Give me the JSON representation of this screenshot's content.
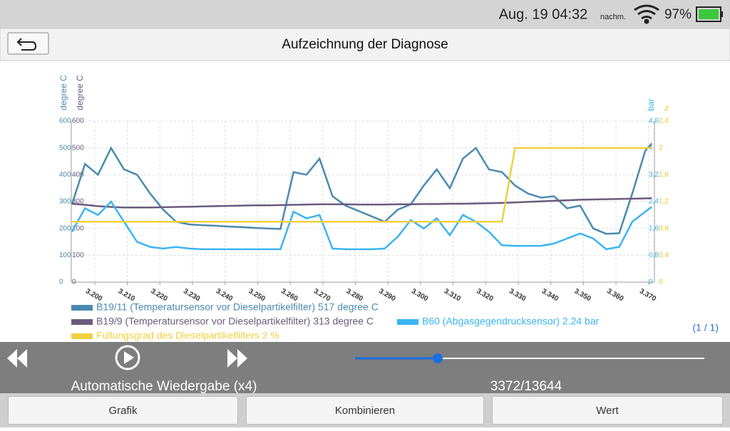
{
  "status": {
    "date_time": "Aug. 19 04:32",
    "period": "nachm.",
    "battery": "97%"
  },
  "header": {
    "title": "Aufzeichnung der Diagnose"
  },
  "chart_data": {
    "type": "line",
    "axes": [
      {
        "label": "degree C",
        "color": "#4a8ab0",
        "side": "left",
        "lim": [
          0,
          600
        ],
        "ticks": [
          0,
          100,
          200,
          300,
          400,
          500,
          600
        ]
      },
      {
        "label": "degree C",
        "color": "#6b5a7e",
        "side": "left",
        "lim": [
          0,
          600
        ],
        "ticks": [
          0,
          100,
          200,
          300,
          400,
          500,
          600
        ]
      },
      {
        "label": "bar",
        "color": "#3ab4f2",
        "side": "right",
        "lim": [
          0,
          4.8
        ],
        "ticks": [
          0,
          {
            "value": 0.8,
            "label": "0,8"
          },
          {
            "value": 1.6,
            "label": "1,6"
          },
          {
            "value": 2.4,
            "label": "2,4"
          },
          {
            "value": 3.2,
            "label": "3,2"
          },
          4,
          {
            "value": 4.8,
            "label": "4,8"
          }
        ]
      },
      {
        "label": "%",
        "color": "#e8c830",
        "side": "right",
        "lim": [
          0,
          2.4
        ],
        "ticks": [
          0,
          {
            "value": 0.4,
            "label": "0,4"
          },
          {
            "value": 0.8,
            "label": "0,8"
          },
          {
            "value": 1.2,
            "label": "1,2"
          },
          {
            "value": 1.6,
            "label": "1,6"
          },
          2,
          {
            "value": 2.4,
            "label": "2,4"
          }
        ]
      }
    ],
    "xlim": [
      3.1928,
      3.3718
    ],
    "xticks": [
      {
        "value": 3.2,
        "label": "3.200"
      },
      {
        "value": 3.21,
        "label": "3.210"
      },
      {
        "value": 3.22,
        "label": "3.220"
      },
      {
        "value": 3.23,
        "label": "3.230"
      },
      {
        "value": 3.24,
        "label": "3.240"
      },
      {
        "value": 3.25,
        "label": "3.250"
      },
      {
        "value": 3.26,
        "label": "3.260"
      },
      {
        "value": 3.27,
        "label": "3.270"
      },
      {
        "value": 3.28,
        "label": "3.280"
      },
      {
        "value": 3.29,
        "label": "3.290"
      },
      {
        "value": 3.3,
        "label": "3.300"
      },
      {
        "value": 3.31,
        "label": "3.310"
      },
      {
        "value": 3.32,
        "label": "3.320"
      },
      {
        "value": 3.33,
        "label": "3.330"
      },
      {
        "value": 3.34,
        "label": "3.340"
      },
      {
        "value": 3.35,
        "label": "3.350"
      },
      {
        "value": 3.36,
        "label": "3.360"
      },
      {
        "value": 3.37,
        "label": "3.370"
      }
    ],
    "grid": true,
    "x": [
      3.193,
      3.197,
      3.201,
      3.205,
      3.209,
      3.213,
      3.217,
      3.221,
      3.225,
      3.229,
      3.233,
      3.237,
      3.241,
      3.245,
      3.249,
      3.253,
      3.257,
      3.261,
      3.265,
      3.269,
      3.273,
      3.277,
      3.281,
      3.285,
      3.289,
      3.293,
      3.297,
      3.301,
      3.305,
      3.309,
      3.313,
      3.317,
      3.321,
      3.325,
      3.329,
      3.333,
      3.337,
      3.341,
      3.345,
      3.349,
      3.353,
      3.357,
      3.361,
      3.365,
      3.369,
      3.371
    ],
    "series": [
      {
        "name": "B19/11 (Temperatursensor vor Dieselpartikelfilter) 517 degree C",
        "color": "#4a8ab0",
        "axis": 0,
        "values": [
          290,
          440,
          400,
          500,
          420,
          400,
          330,
          270,
          225,
          215,
          212,
          210,
          207,
          205,
          202,
          200,
          198,
          410,
          400,
          460,
          320,
          285,
          265,
          245,
          225,
          270,
          290,
          360,
          420,
          350,
          460,
          500,
          420,
          410,
          360,
          330,
          315,
          320,
          275,
          285,
          200,
          180,
          182,
          330,
          490,
          517
        ]
      },
      {
        "name": "B19/9 (Temperatursensor vor Dieselpartikelfilter) 313 degree C",
        "color": "#6b5a7e",
        "axis": 1,
        "values": [
          292,
          288,
          283,
          280,
          278,
          278,
          278,
          279,
          280,
          281,
          282,
          283,
          284,
          285,
          286,
          286,
          287,
          288,
          289,
          290,
          290,
          290,
          289,
          289,
          289,
          290,
          290,
          291,
          291,
          292,
          292,
          293,
          294,
          295,
          297,
          299,
          301,
          303,
          305,
          307,
          308,
          309,
          310,
          311,
          312,
          313
        ]
      },
      {
        "name": "B60 (Abgasgegendrucksensor) 2.24 bar",
        "color": "#3ab4f2",
        "axis": 2,
        "values": [
          1.5,
          2.2,
          2.0,
          2.4,
          1.8,
          1.2,
          1.05,
          1.0,
          1.05,
          1.0,
          0.98,
          0.98,
          0.98,
          0.98,
          0.98,
          0.98,
          0.98,
          2.1,
          1.9,
          2.0,
          1.0,
          0.98,
          0.98,
          0.98,
          1.0,
          1.35,
          1.85,
          1.6,
          1.9,
          1.4,
          2.0,
          1.8,
          1.5,
          1.1,
          1.08,
          1.08,
          1.08,
          1.15,
          1.3,
          1.45,
          1.3,
          0.98,
          1.05,
          1.8,
          2.1,
          2.24
        ]
      },
      {
        "name": "Füllungsgrad des Dieselpartikelfilters 2 %",
        "color": "#f0d040",
        "axis": 3,
        "values": [
          0.9,
          0.9,
          0.9,
          0.9,
          0.9,
          0.9,
          0.9,
          0.9,
          0.9,
          0.9,
          0.9,
          0.9,
          0.9,
          0.9,
          0.9,
          0.9,
          0.9,
          0.9,
          0.9,
          0.9,
          0.9,
          0.9,
          0.9,
          0.9,
          0.9,
          0.9,
          0.9,
          0.9,
          0.9,
          0.9,
          0.9,
          0.9,
          0.9,
          0.9,
          2,
          2,
          2,
          2,
          2,
          2,
          2,
          2,
          2,
          2,
          2,
          2
        ]
      }
    ]
  },
  "pager": "(1 / 1)",
  "playback": {
    "mode": "Automatische Wiedergabe (x4)",
    "position": "3372/13644"
  },
  "buttons": [
    "Grafik",
    "Kombinieren",
    "Wert"
  ]
}
